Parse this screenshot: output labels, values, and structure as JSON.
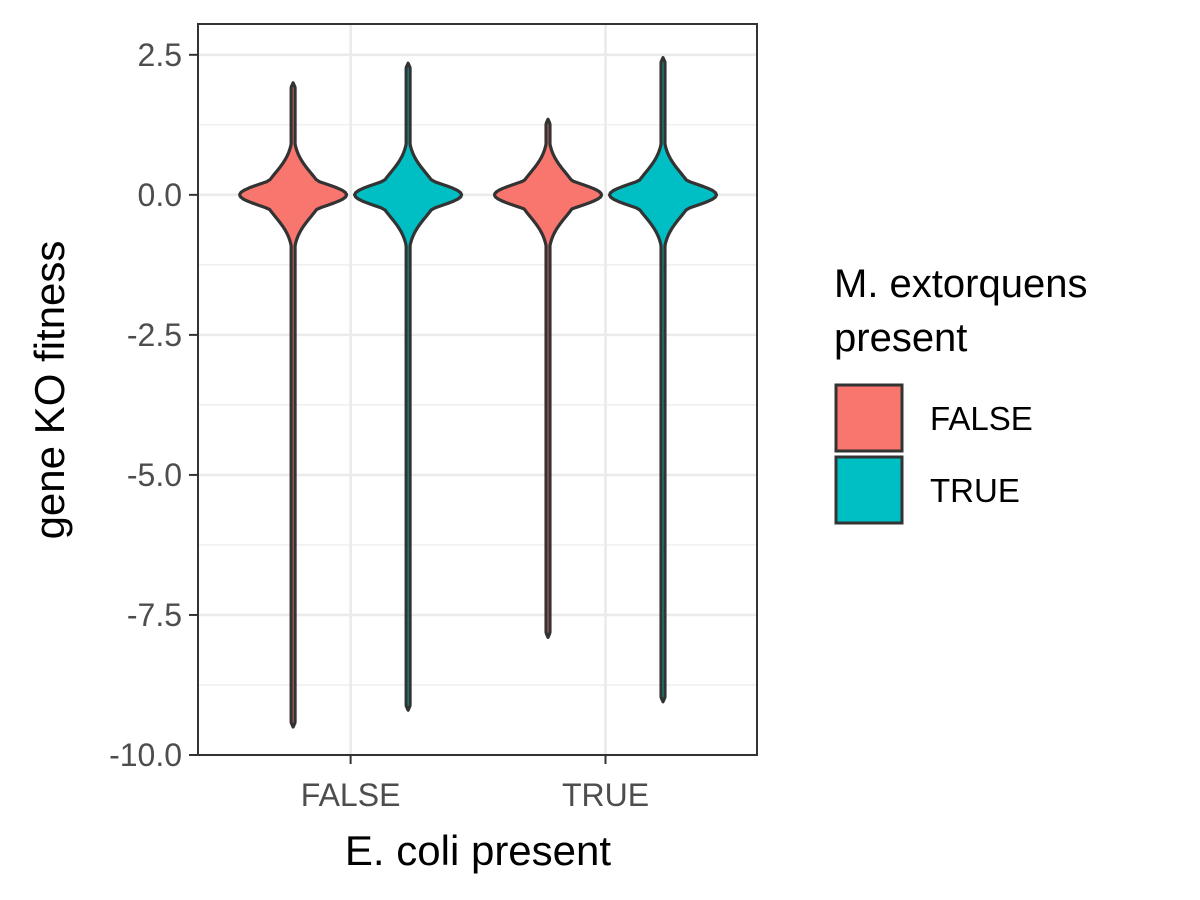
{
  "chart_data": {
    "type": "violin",
    "title": "",
    "xlabel": "E. coli present",
    "ylabel": "gene KO fitness",
    "categories": [
      "FALSE",
      "TRUE"
    ],
    "ylim": [
      -10.0,
      2.5
    ],
    "yticks": [
      2.5,
      0.0,
      -2.5,
      -5.0,
      -7.5,
      -10.0
    ],
    "ytick_labels": [
      "2.5",
      "0.0",
      "-2.5",
      "-5.0",
      "-7.5",
      "-10.0"
    ],
    "grid": true,
    "legend": {
      "title_lines": [
        "M. extorquens",
        "present"
      ],
      "position": "right"
    },
    "series": [
      {
        "name": "FALSE",
        "color": "#F8766D",
        "violins": [
          {
            "category": "FALSE",
            "min": -9.5,
            "max": 2.0,
            "mode": 0.0
          },
          {
            "category": "TRUE",
            "min": -7.9,
            "max": 1.35,
            "mode": 0.0
          }
        ]
      },
      {
        "name": "TRUE",
        "color": "#00BFC4",
        "violins": [
          {
            "category": "FALSE",
            "min": -9.2,
            "max": 2.35,
            "mode": 0.0
          },
          {
            "category": "TRUE",
            "min": -9.05,
            "max": 2.45,
            "mode": 0.0
          }
        ]
      }
    ]
  }
}
